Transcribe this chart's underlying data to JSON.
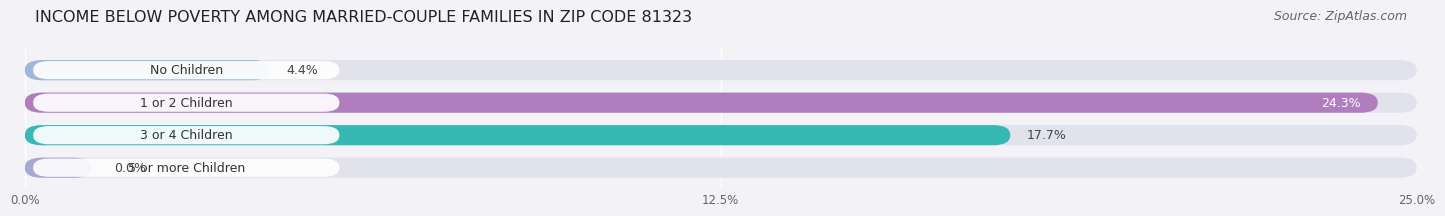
{
  "title": "INCOME BELOW POVERTY AMONG MARRIED-COUPLE FAMILIES IN ZIP CODE 81323",
  "source": "Source: ZipAtlas.com",
  "categories": [
    "No Children",
    "1 or 2 Children",
    "3 or 4 Children",
    "5 or more Children"
  ],
  "values": [
    4.4,
    24.3,
    17.7,
    0.0
  ],
  "bar_colors": [
    "#9eb8d9",
    "#b07dbf",
    "#36b8b5",
    "#a8a8d0"
  ],
  "bar_bg_color": "#e2e2ec",
  "xlim": [
    0,
    25
  ],
  "xticks": [
    0,
    12.5,
    25.0
  ],
  "xtick_labels": [
    "0.0%",
    "12.5%",
    "25.0%"
  ],
  "background_color": "#f2f2f7",
  "title_fontsize": 11.5,
  "source_fontsize": 9,
  "label_fontsize": 9,
  "value_fontsize": 9
}
